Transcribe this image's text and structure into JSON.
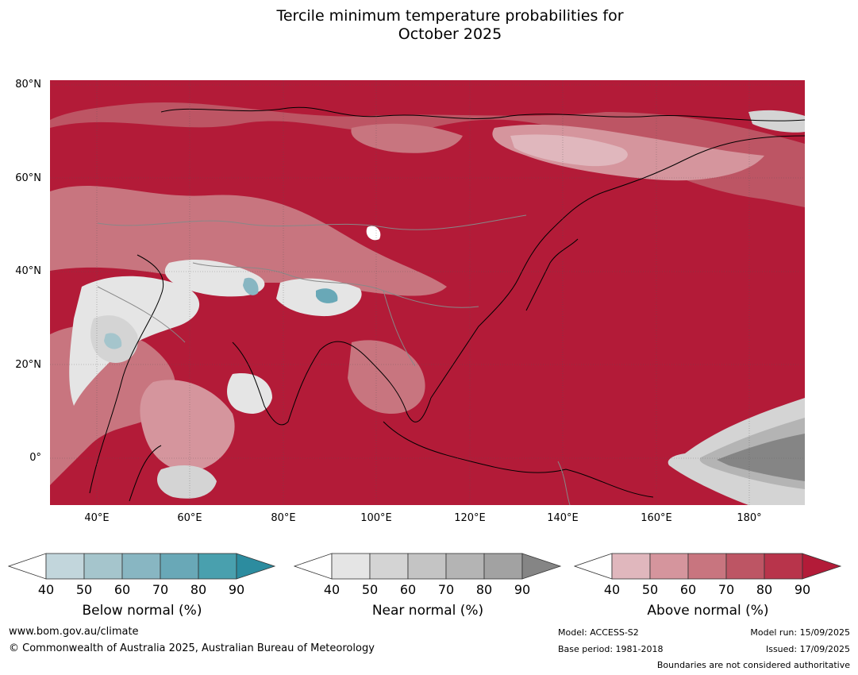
{
  "title_line1": "Tercile minimum temperature probabilities for",
  "title_line2": "October 2025",
  "map": {
    "lat_labels": [
      "80°N",
      "60°N",
      "40°N",
      "20°N",
      "0°"
    ],
    "lon_labels": [
      "40°E",
      "60°E",
      "80°E",
      "100°E",
      "120°E",
      "140°E",
      "160°E",
      "180°"
    ],
    "lon_range": [
      30,
      192
    ],
    "lat_range": [
      -10,
      81
    ]
  },
  "colorbars": [
    {
      "label": "Below normal (%)",
      "ticks": [
        "40",
        "50",
        "60",
        "70",
        "80",
        "90"
      ],
      "colors": [
        "#ffffff",
        "#c2d6dc",
        "#a5c5cc",
        "#88b6c2",
        "#69a8b7",
        "#49a0ae",
        "#2c8c9f"
      ]
    },
    {
      "label": "Near normal (%)",
      "ticks": [
        "40",
        "50",
        "60",
        "70",
        "80",
        "90"
      ],
      "colors": [
        "#ffffff",
        "#e5e5e5",
        "#d4d4d4",
        "#c4c4c4",
        "#b4b4b4",
        "#a2a2a2",
        "#858585"
      ]
    },
    {
      "label": "Above normal (%)",
      "ticks": [
        "40",
        "50",
        "60",
        "70",
        "80",
        "90"
      ],
      "colors": [
        "#ffffff",
        "#e0b7bd",
        "#d5959d",
        "#c8757f",
        "#bd5564",
        "#b8344b",
        "#b31b38"
      ]
    }
  ],
  "footer": {
    "website": "www.bom.gov.au/climate",
    "copyright": "© Commonwealth of Australia 2025, Australian Bureau of Meteorology",
    "model": "Model: ACCESS-S2",
    "base_period": "Base period: 1981-2018",
    "model_run": "Model run: 15/09/2025",
    "issued": "Issued: 17/09/2025",
    "boundaries_note": "Boundaries are not considered authoritative"
  }
}
